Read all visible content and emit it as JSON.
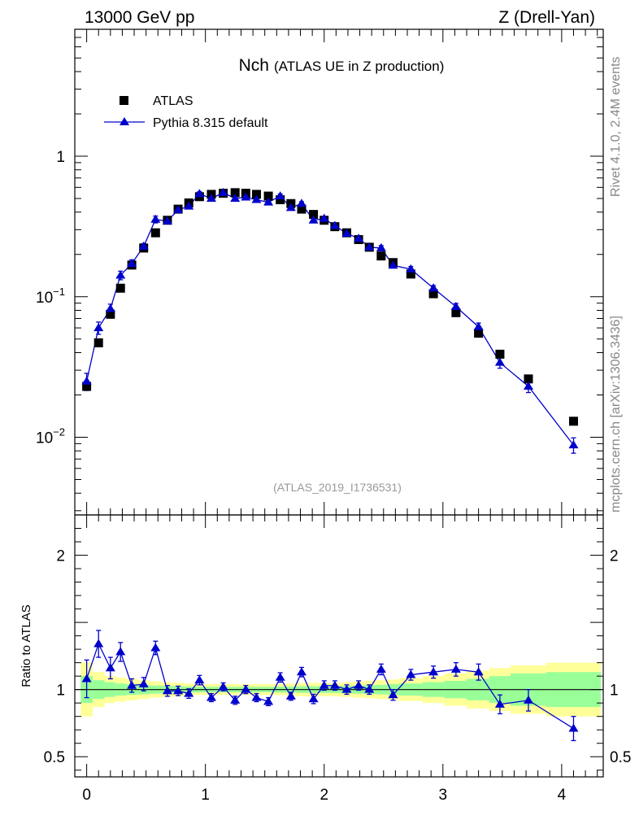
{
  "header": {
    "left": "13000 GeV pp",
    "right": "Z (Drell-Yan)"
  },
  "side_labels": {
    "rivet": "Rivet 4.1.0,  2.4M events",
    "source": "mcplots.cern.ch [arXiv:1306.3436]"
  },
  "chart_data": {
    "type": "scatter",
    "title_main": "Nch",
    "title_sub": "(ATLAS UE in Z production)",
    "analysis_id": "(ATLAS_2019_I1736531)",
    "legend": {
      "placement": "top-left",
      "entries": [
        "ATLAS",
        "Pythia 8.315 default"
      ]
    },
    "colors": {
      "data": "#000000",
      "mc": "#0000cc",
      "band_inner": "#99ff99",
      "band_outer": "#ffff99"
    },
    "main": {
      "yscale": "log",
      "ylim": [
        0.0028,
        8.0
      ],
      "yticks": [
        {
          "value": 1,
          "label": "1"
        },
        {
          "value": 0.1,
          "label": "10",
          "exp": "−1"
        },
        {
          "value": 0.01,
          "label": "10",
          "exp": "−2"
        }
      ],
      "xlim": [
        -0.1,
        4.35
      ]
    },
    "ratio": {
      "ylabel": "Ratio to ATLAS",
      "ylim": [
        0.35,
        2.3
      ],
      "yticks": [
        {
          "value": 0.5,
          "label": "0.5"
        },
        {
          "value": 1,
          "label": "1"
        },
        {
          "value": 2,
          "label": "2"
        }
      ],
      "xticks": [
        {
          "value": 0,
          "label": "0"
        },
        {
          "value": 1,
          "label": "1"
        },
        {
          "value": 2,
          "label": "2"
        },
        {
          "value": 3,
          "label": "3"
        },
        {
          "value": 4,
          "label": "4"
        }
      ]
    },
    "x": [
      0.0,
      0.1,
      0.2,
      0.285,
      0.38,
      0.48,
      0.58,
      0.68,
      0.77,
      0.86,
      0.95,
      1.05,
      1.15,
      1.25,
      1.34,
      1.43,
      1.53,
      1.63,
      1.72,
      1.81,
      1.91,
      2.0,
      2.09,
      2.19,
      2.29,
      2.38,
      2.48,
      2.58,
      2.73,
      2.92,
      3.11,
      3.3,
      3.48,
      3.72,
      4.1
    ],
    "series": [
      {
        "name": "ATLAS",
        "values": [
          0.023,
          0.047,
          0.075,
          0.115,
          0.168,
          0.222,
          0.285,
          0.35,
          0.42,
          0.465,
          0.515,
          0.535,
          0.545,
          0.55,
          0.545,
          0.535,
          0.52,
          0.49,
          0.46,
          0.42,
          0.385,
          0.35,
          0.315,
          0.285,
          0.255,
          0.225,
          0.195,
          0.175,
          0.145,
          0.105,
          0.077,
          0.055,
          0.039,
          0.026,
          0.013
        ]
      },
      {
        "name": "Pythia 8.315 default",
        "values": [
          0.025,
          0.06,
          0.082,
          0.142,
          0.172,
          0.228,
          0.355,
          0.345,
          0.415,
          0.44,
          0.54,
          0.5,
          0.55,
          0.5,
          0.51,
          0.49,
          0.47,
          0.52,
          0.43,
          0.46,
          0.35,
          0.36,
          0.32,
          0.282,
          0.26,
          0.225,
          0.222,
          0.167,
          0.157,
          0.115,
          0.085,
          0.061,
          0.034,
          0.023,
          0.0088
        ],
        "errors": [
          0.0035,
          0.006,
          0.0065,
          0.01,
          0.011,
          0.011,
          0.02,
          0.015,
          0.016,
          0.016,
          0.018,
          0.014,
          0.016,
          0.014,
          0.014,
          0.014,
          0.014,
          0.018,
          0.013,
          0.014,
          0.012,
          0.011,
          0.01,
          0.009,
          0.009,
          0.008,
          0.009,
          0.007,
          0.007,
          0.005,
          0.0045,
          0.004,
          0.003,
          0.0022,
          0.0011
        ]
      }
    ],
    "ratio_values": [
      1.08,
      1.34,
      1.16,
      1.28,
      1.03,
      1.04,
      1.31,
      0.99,
      0.99,
      0.97,
      1.07,
      0.94,
      1.02,
      0.92,
      1.0,
      0.94,
      0.91,
      1.09,
      0.95,
      1.13,
      0.93,
      1.03,
      1.03,
      1.0,
      1.03,
      1.0,
      1.15,
      0.96,
      1.11,
      1.13,
      1.15,
      1.13,
      0.89,
      0.92,
      0.71
    ],
    "ratio_errors": [
      0.14,
      0.1,
      0.08,
      0.07,
      0.05,
      0.05,
      0.05,
      0.04,
      0.035,
      0.035,
      0.035,
      0.03,
      0.03,
      0.03,
      0.03,
      0.03,
      0.03,
      0.035,
      0.03,
      0.035,
      0.035,
      0.035,
      0.035,
      0.035,
      0.035,
      0.035,
      0.04,
      0.04,
      0.04,
      0.045,
      0.05,
      0.06,
      0.07,
      0.08,
      0.09
    ],
    "band_edges": [
      -0.05,
      0.05,
      0.15,
      0.24,
      0.33,
      0.43,
      0.53,
      0.63,
      0.73,
      0.82,
      0.91,
      1.0,
      1.1,
      1.2,
      1.29,
      1.38,
      1.48,
      1.58,
      1.67,
      1.76,
      1.86,
      1.95,
      2.05,
      2.14,
      2.24,
      2.33,
      2.43,
      2.53,
      2.63,
      2.83,
      3.01,
      3.2,
      3.39,
      3.57,
      3.87,
      4.33
    ],
    "band_inner": [
      0.1,
      0.07,
      0.055,
      0.045,
      0.04,
      0.035,
      0.03,
      0.028,
      0.025,
      0.022,
      0.02,
      0.02,
      0.02,
      0.02,
      0.02,
      0.02,
      0.02,
      0.022,
      0.022,
      0.025,
      0.025,
      0.025,
      0.025,
      0.028,
      0.03,
      0.032,
      0.035,
      0.04,
      0.045,
      0.055,
      0.065,
      0.08,
      0.1,
      0.12,
      0.13
    ],
    "band_outer": [
      0.2,
      0.13,
      0.1,
      0.09,
      0.08,
      0.07,
      0.06,
      0.055,
      0.05,
      0.045,
      0.04,
      0.04,
      0.04,
      0.04,
      0.04,
      0.04,
      0.04,
      0.042,
      0.045,
      0.05,
      0.05,
      0.05,
      0.05,
      0.055,
      0.06,
      0.065,
      0.07,
      0.075,
      0.085,
      0.1,
      0.12,
      0.14,
      0.16,
      0.18,
      0.2
    ]
  }
}
